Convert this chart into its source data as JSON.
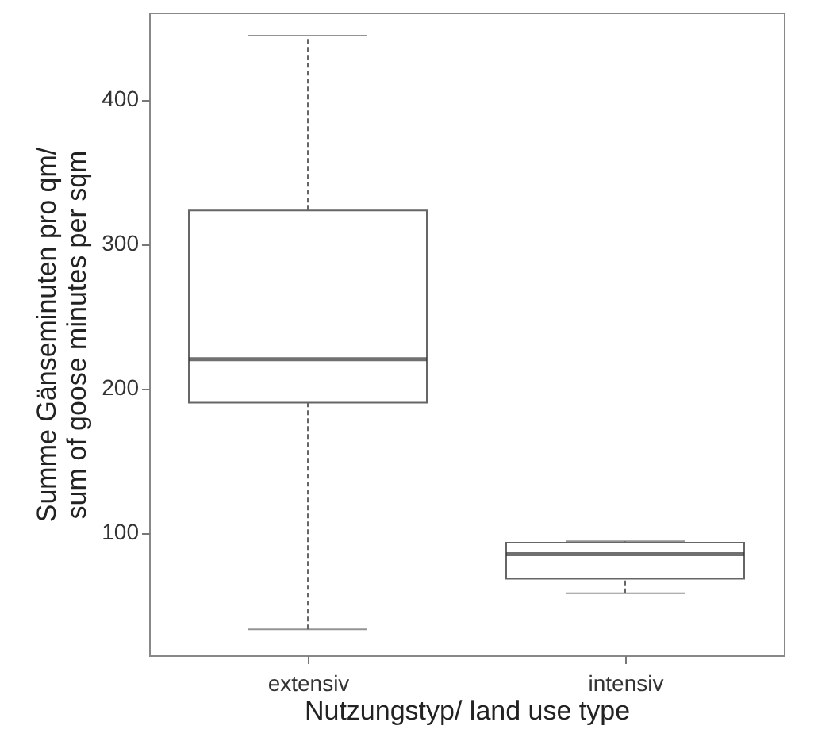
{
  "chart_data": {
    "type": "box",
    "xlabel": "Nutzungstyp/ land use type",
    "ylabel": "Summe Gänseminuten pro qm/ sum of goose minutes per sqm",
    "categories": [
      "extensiv",
      "intensiv"
    ],
    "boxes": [
      {
        "low": 33,
        "q1": 190,
        "median": 220,
        "q3": 323,
        "high": 444
      },
      {
        "low": 58,
        "q1": 68,
        "median": 85,
        "q3": 93,
        "high": 94
      }
    ],
    "ylim": [
      15,
      460
    ],
    "yticks": [
      100,
      200,
      300,
      400
    ],
    "line_style": "dashed"
  }
}
